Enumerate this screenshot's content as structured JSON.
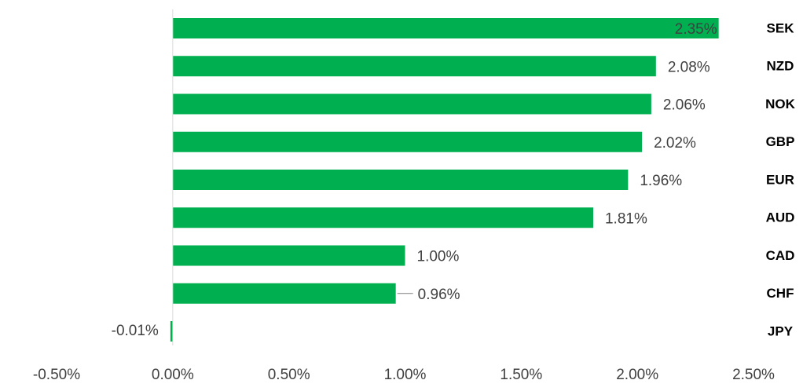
{
  "chart_data": {
    "type": "bar",
    "orientation": "horizontal",
    "categories": [
      "SEK",
      "NZD",
      "NOK",
      "GBP",
      "EUR",
      "AUD",
      "CAD",
      "CHF",
      "JPY"
    ],
    "values": [
      2.35,
      2.08,
      2.06,
      2.02,
      1.96,
      1.81,
      1.0,
      0.96,
      -0.01
    ],
    "data_labels": [
      "2.35%",
      "2.08%",
      "2.06%",
      "2.02%",
      "1.96%",
      "1.81%",
      "1.00%",
      "0.96%",
      "-0.01%"
    ],
    "xlim": [
      -0.5,
      2.5
    ],
    "x_ticks": [
      -0.5,
      0.0,
      0.5,
      1.0,
      1.5,
      2.0,
      2.5
    ],
    "x_tick_labels": [
      "-0.50%",
      "0.00%",
      "0.50%",
      "1.00%",
      "1.50%",
      "2.00%",
      "2.50%"
    ],
    "category_labels_position": "right",
    "grid": false,
    "legend": "none",
    "title": "",
    "xlabel": "",
    "ylabel": "",
    "colors": {
      "bar": "#00b050",
      "axis": "#d9d9d9",
      "text": "#404040",
      "category_text": "#000000"
    }
  }
}
